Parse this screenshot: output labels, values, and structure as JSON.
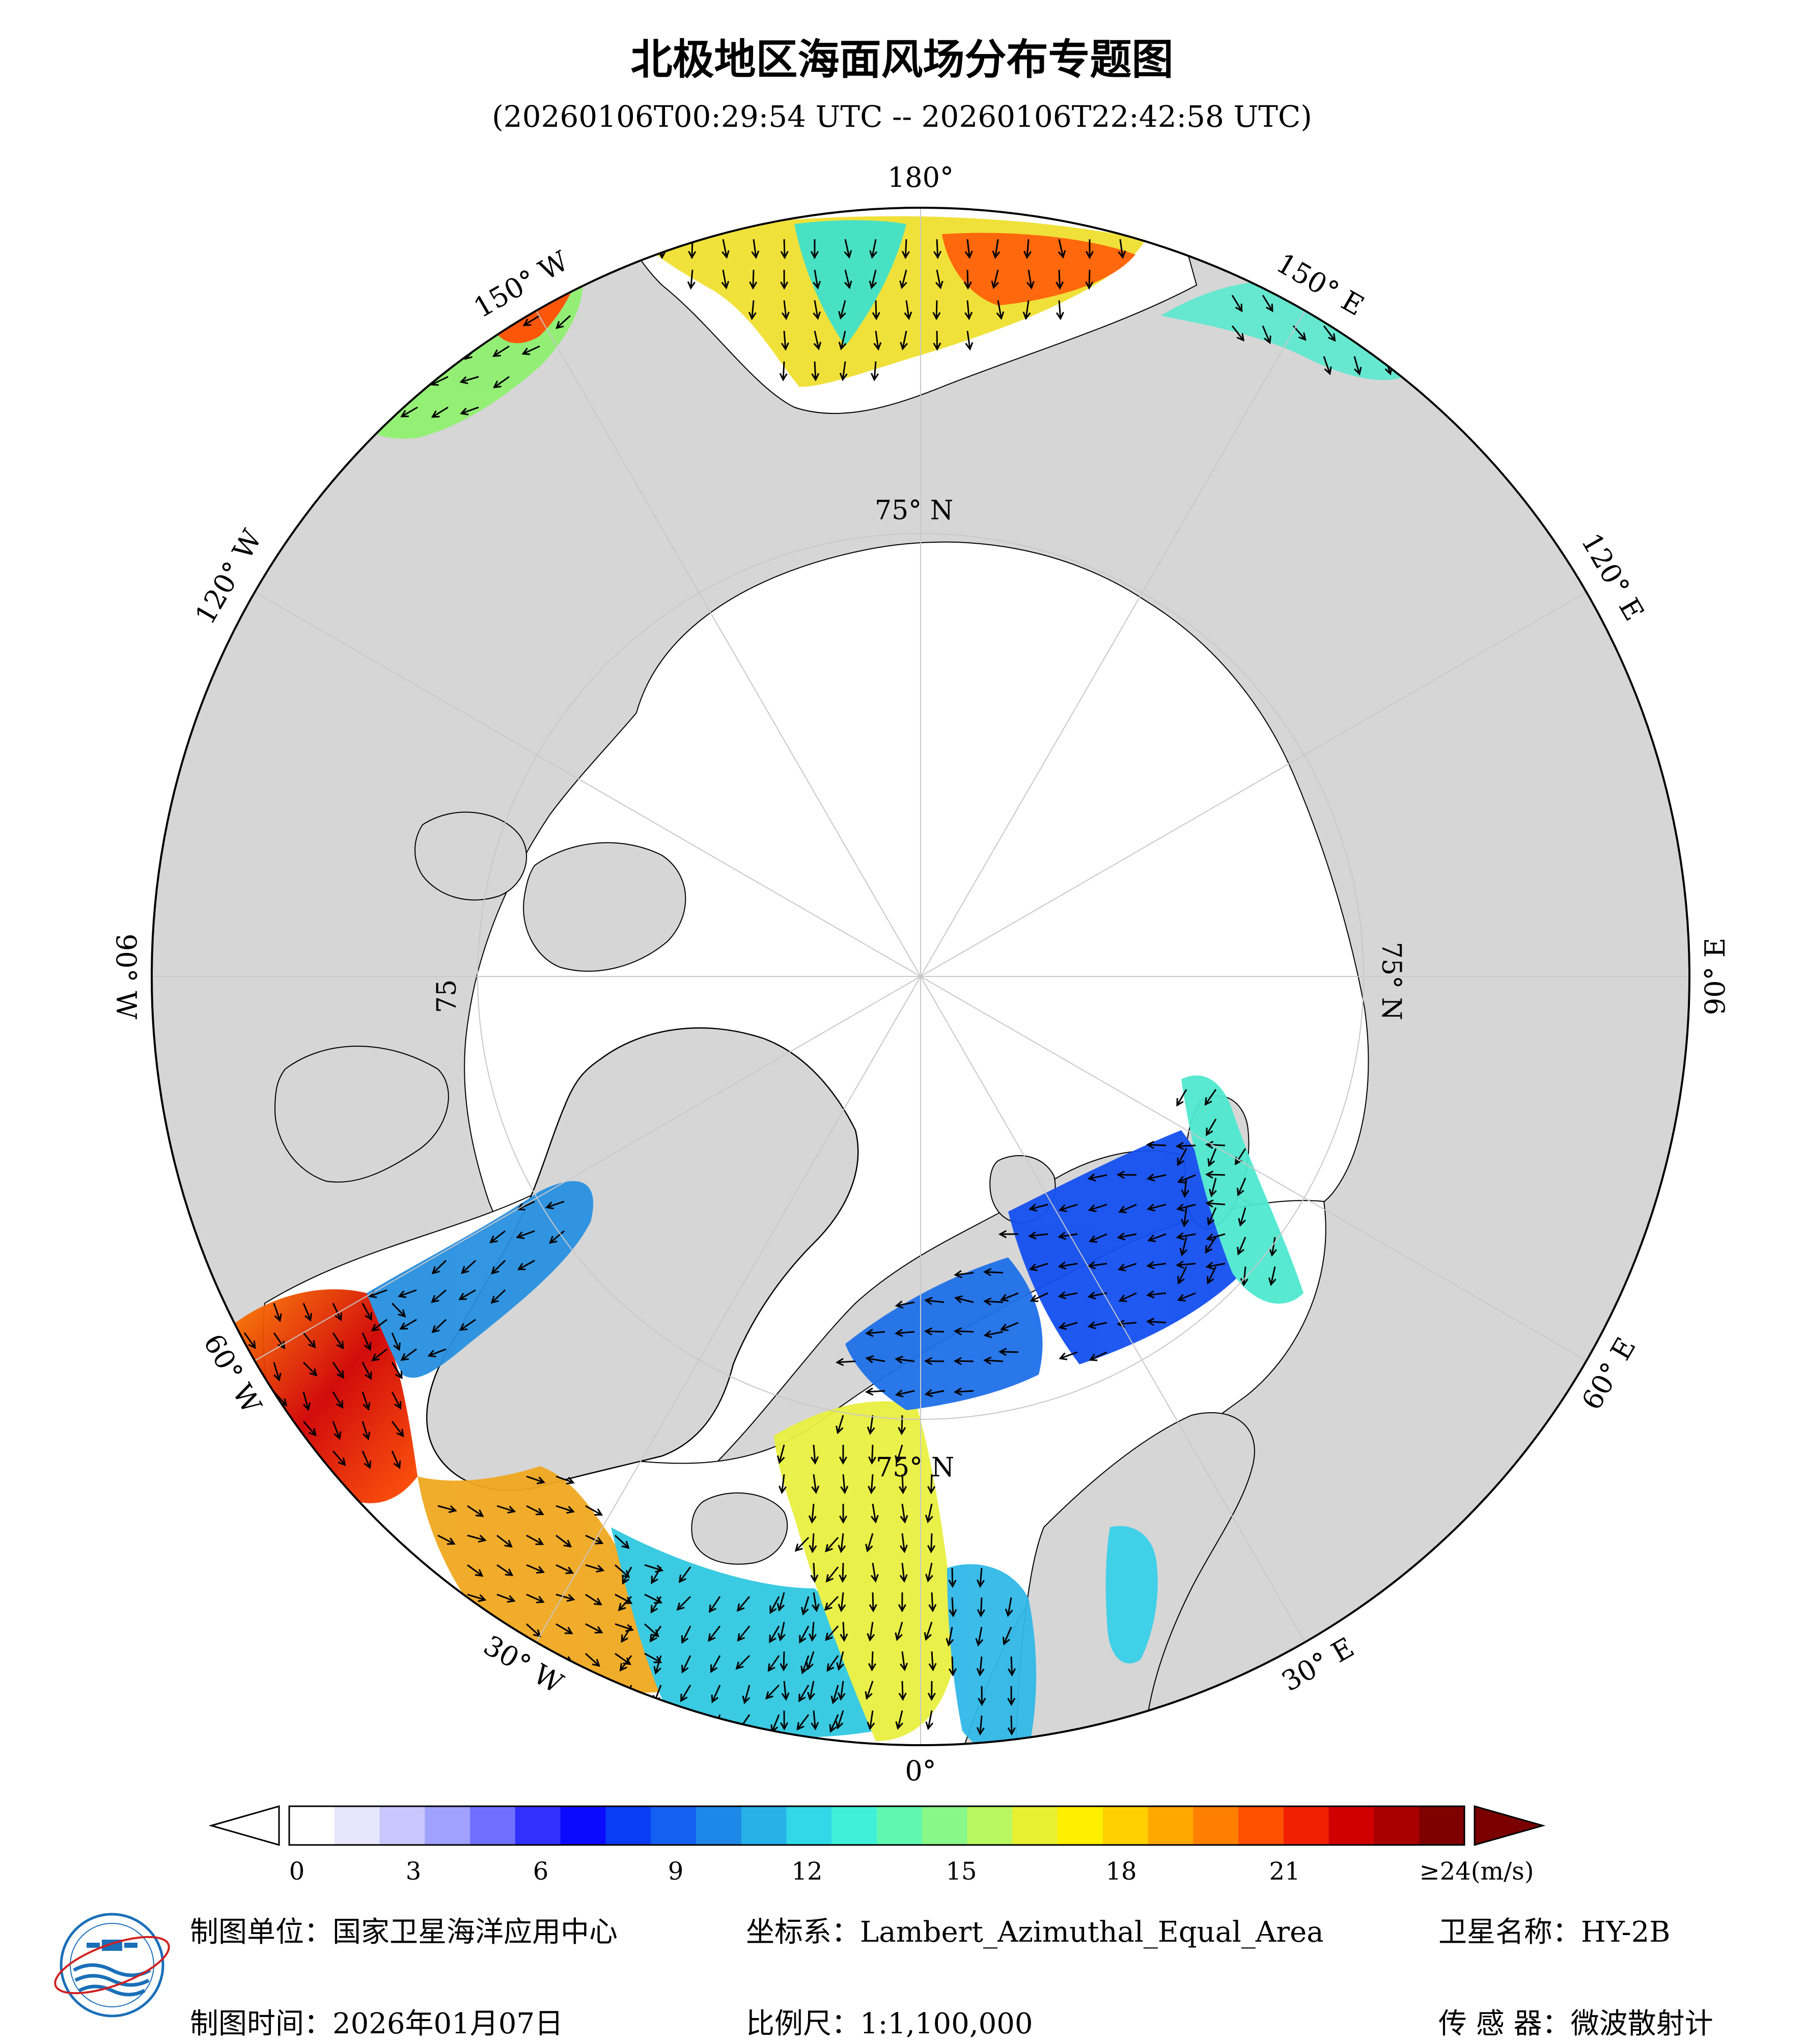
{
  "title": "北极地区海面风场分布专题图",
  "subtitle": "(20260106T00:29:54 UTC -- 20260106T22:42:58 UTC)",
  "graticule": {
    "meridians": [
      {
        "lon": 180,
        "label": "180°"
      },
      {
        "lon": 150,
        "label": "150° E"
      },
      {
        "lon": 120,
        "label": "120° E"
      },
      {
        "lon": 90,
        "label": "90° E"
      },
      {
        "lon": 60,
        "label": "60° E"
      },
      {
        "lon": 30,
        "label": "30° E"
      },
      {
        "lon": 0,
        "label": "0°"
      },
      {
        "lon": -30,
        "label": "30° W"
      },
      {
        "lon": -60,
        "label": "60° W"
      },
      {
        "lon": -90,
        "label": "90° W"
      },
      {
        "lon": -120,
        "label": "120° W"
      },
      {
        "lon": -150,
        "label": "150° W"
      }
    ],
    "parallel_labels": [
      "75° N",
      "75° N",
      "75",
      "75° N"
    ]
  },
  "colorbar": {
    "unit": "(m/s)",
    "ticks": [
      "0",
      "3",
      "6",
      "9",
      "12",
      "15",
      "18",
      "21",
      "≥24(m/s)"
    ],
    "colors": [
      "#ffffff",
      "#e6e6ff",
      "#c8c8ff",
      "#a0a0ff",
      "#7070ff",
      "#3030ff",
      "#0a0aff",
      "#0a3cf5",
      "#1460f0",
      "#1e88e8",
      "#28b0e8",
      "#30d8e8",
      "#40f0d8",
      "#60f8b0",
      "#88f888",
      "#b8f860",
      "#e8f030",
      "#fff000",
      "#ffd000",
      "#ffa800",
      "#ff8000",
      "#ff5000",
      "#f02000",
      "#d00000",
      "#a80000",
      "#800000"
    ],
    "over_color": "#7a0000"
  },
  "footer": {
    "unit": "制图单位：国家卫星海洋应用中心",
    "time": "制图时间：2026年01月07日",
    "crs": "坐标系：Lambert_Azimuthal_Equal_Area",
    "scale": "比例尺：1:1,100,000",
    "satellite": "卫星名称：HY-2B",
    "sensor": "传 感 器：微波散射计"
  },
  "logo": {
    "icon": "nsoas-logo-icon"
  }
}
